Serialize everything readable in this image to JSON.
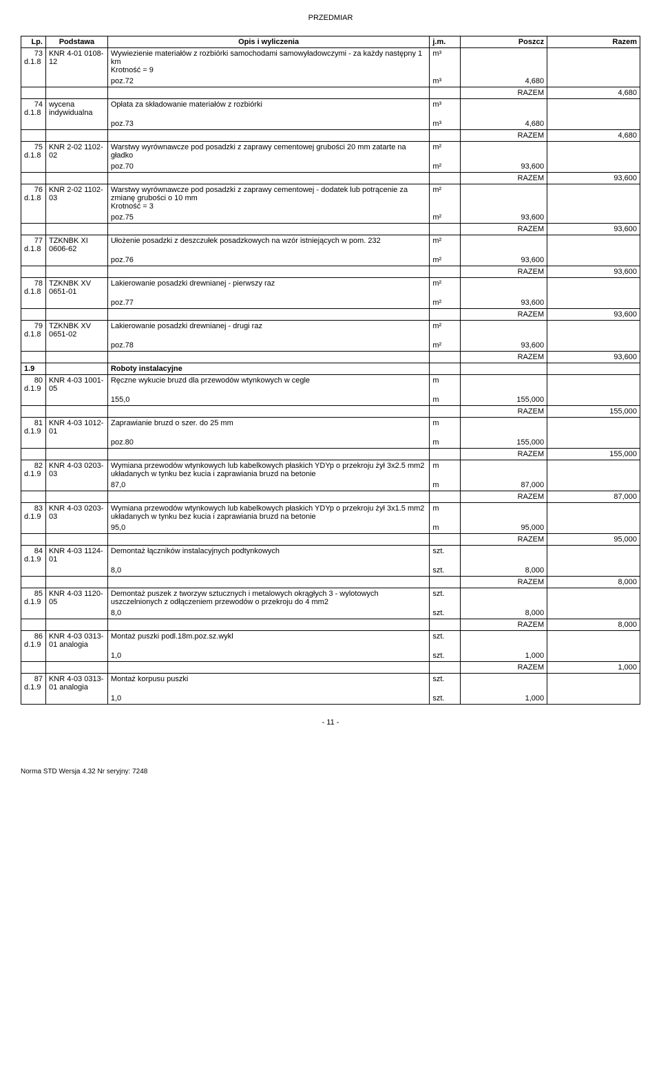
{
  "header": "PRZEDMIAR",
  "table": {
    "headers": [
      "Lp.",
      "Podstawa",
      "Opis i wyliczenia",
      "j.m.",
      "Poszcz",
      "Razem"
    ],
    "rows": [
      {
        "lp": "73",
        "lpSub": "d.1.8",
        "pod": "KNR 4-01 0108-12",
        "opis": "Wywiezienie materiałów z rozbiórki samochodami samowyładowczymi - za każdy następny 1 km\nKrotność = 9",
        "jm": "m³",
        "calc": "poz.72",
        "calcJm": "m³",
        "poszcz": "4,680",
        "razem": "4,680",
        "razemLabel": "RAZEM"
      },
      {
        "lp": "74",
        "lpSub": "d.1.8",
        "pod": "wycena indywidualna",
        "opis": "Opłata za składowanie materiałów z rozbiórki",
        "jm": "m³",
        "calc": "poz.73",
        "calcJm": "m³",
        "poszcz": "4,680",
        "razem": "4,680",
        "razemLabel": "RAZEM"
      },
      {
        "lp": "75",
        "lpSub": "d.1.8",
        "pod": "KNR 2-02 1102-02",
        "opis": "Warstwy wyrównawcze pod posadzki z zaprawy cementowej grubości 20 mm zatarte na gładko",
        "jm": "m²",
        "calc": "poz.70",
        "calcJm": "m²",
        "poszcz": "93,600",
        "razem": "93,600",
        "razemLabel": "RAZEM"
      },
      {
        "lp": "76",
        "lpSub": "d.1.8",
        "pod": "KNR 2-02 1102-03",
        "opis": "Warstwy wyrównawcze pod posadzki z zaprawy cementowej - dodatek lub potrącenie za zmianę grubości o 10 mm\nKrotność = 3",
        "jm": "m²",
        "calc": "poz.75",
        "calcJm": "m²",
        "poszcz": "93,600",
        "razem": "93,600",
        "razemLabel": "RAZEM"
      },
      {
        "lp": "77",
        "lpSub": "d.1.8",
        "pod": "TZKNBK XI 0606-62",
        "opis": "Ułożenie posadzki z deszczułek posadzkowych na wzór istniejących w pom. 232",
        "jm": "m²",
        "calc": "poz.76",
        "calcJm": "m²",
        "poszcz": "93,600",
        "razem": "93,600",
        "razemLabel": "RAZEM"
      },
      {
        "lp": "78",
        "lpSub": "d.1.8",
        "pod": "TZKNBK XV 0651-01",
        "opis": "Lakierowanie posadzki drewnianej - pierwszy raz",
        "jm": "m²",
        "calc": "poz.77",
        "calcJm": "m²",
        "poszcz": "93,600",
        "razem": "93,600",
        "razemLabel": "RAZEM"
      },
      {
        "lp": "79",
        "lpSub": "d.1.8",
        "pod": "TZKNBK XV 0651-02",
        "opis": "Lakierowanie posadzki drewnianej - drugi raz",
        "jm": "m²",
        "calc": "poz.78",
        "calcJm": "m²",
        "poszcz": "93,600",
        "razem": "93,600",
        "razemLabel": "RAZEM"
      },
      {
        "section": true,
        "lp": "1.9",
        "opis": "Roboty instalacyjne"
      },
      {
        "lp": "80",
        "lpSub": "d.1.9",
        "pod": "KNR 4-03 1001-05",
        "opis": "Ręczne wykucie bruzd dla przewodów wtynkowych w cegle",
        "jm": "m",
        "calc": "155,0",
        "calcJm": "m",
        "poszcz": "155,000",
        "razem": "155,000",
        "razemLabel": "RAZEM"
      },
      {
        "lp": "81",
        "lpSub": "d.1.9",
        "pod": "KNR 4-03 1012-01",
        "opis": "Zaprawianie bruzd o szer. do 25 mm",
        "jm": "m",
        "calc": "poz.80",
        "calcJm": "m",
        "poszcz": "155,000",
        "razem": "155,000",
        "razemLabel": "RAZEM"
      },
      {
        "lp": "82",
        "lpSub": "d.1.9",
        "pod": "KNR 4-03 0203-03",
        "opis": "Wymiana przewodów wtynkowych lub kabelkowych płaskich YDYp o przekroju żył 3x2.5 mm2 układanych w tynku bez kucia i zaprawiania bruzd na betonie",
        "jm": "m",
        "calc": "87,0",
        "calcJm": "m",
        "poszcz": "87,000",
        "razem": "87,000",
        "razemLabel": "RAZEM"
      },
      {
        "lp": "83",
        "lpSub": "d.1.9",
        "pod": "KNR 4-03 0203-03",
        "opis": "Wymiana przewodów wtynkowych lub kabelkowych płaskich YDYp o przekroju żył 3x1.5 mm2 układanych w tynku bez kucia i zaprawiania bruzd na betonie",
        "jm": "m",
        "calc": "95,0",
        "calcJm": "m",
        "poszcz": "95,000",
        "razem": "95,000",
        "razemLabel": "RAZEM"
      },
      {
        "lp": "84",
        "lpSub": "d.1.9",
        "pod": "KNR 4-03 1124-01",
        "opis": "Demontaż łączników instalacyjnych podtynkowych",
        "jm": "szt.",
        "calc": "8,0",
        "calcJm": "szt.",
        "poszcz": "8,000",
        "razem": "8,000",
        "razemLabel": "RAZEM"
      },
      {
        "lp": "85",
        "lpSub": "d.1.9",
        "pod": "KNR 4-03 1120-05",
        "opis": "Demontaż puszek z tworzyw sztucznych i metalowych okrągłych 3 - wylotowych uszczelnionych z odłączeniem przewodów o przekroju do 4 mm2",
        "jm": "szt.",
        "calc": "8,0",
        "calcJm": "szt.",
        "poszcz": "8,000",
        "razem": "8,000",
        "razemLabel": "RAZEM"
      },
      {
        "lp": "86",
        "lpSub": "d.1.9",
        "pod": "KNR 4-03 0313-01 analogia",
        "opis": "Montaż puszki podl.18m.poz.sz.wykl",
        "jm": "szt.",
        "calc": "1,0",
        "calcJm": "szt.",
        "poszcz": "1,000",
        "razem": "1,000",
        "razemLabel": "RAZEM"
      },
      {
        "lp": "87",
        "lpSub": "d.1.9",
        "pod": "KNR 4-03 0313-01 analogia",
        "opis": "Montaż korpusu puszki",
        "jm": "szt.",
        "calc": "1,0",
        "calcJm": "szt.",
        "poszcz": "1,000",
        "razem": "",
        "razemLabel": ""
      }
    ]
  },
  "pageNum": "- 11 -",
  "footer": "Norma STD Wersja 4.32 Nr seryjny: 7248"
}
